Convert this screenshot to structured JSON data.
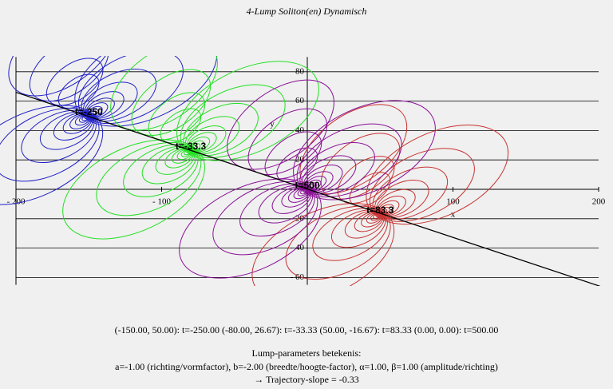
{
  "chart_data": {
    "type": "contour",
    "title": "4-Lump Soliton(en) Dynamisch",
    "x_label": "x",
    "y_label": "y",
    "xlim": [
      -200,
      200
    ],
    "ylim": [
      -65,
      90
    ],
    "xticks": [
      {
        "value": -200,
        "label": "- 200"
      },
      {
        "value": -100,
        "label": "- 100"
      },
      100,
      200
    ],
    "yticks": [
      80,
      60,
      40,
      20,
      {
        "value": -20,
        "label": "- 20"
      },
      {
        "value": -40,
        "label": "- 40"
      },
      {
        "value": -60,
        "label": "- 60"
      }
    ],
    "grid": true,
    "trajectory": {
      "slope": -0.33,
      "color": "#000000"
    },
    "lumps": [
      {
        "x": -150,
        "y": 50,
        "label": "t=-250",
        "color": "#2020c8"
      },
      {
        "x": -80,
        "y": 26.67,
        "label": "t=-33.3",
        "color": "#22e022"
      },
      {
        "x": 50,
        "y": -16.67,
        "label": "t=83.3",
        "color": "#c83232"
      },
      {
        "x": 0,
        "y": 0,
        "label": "t=500",
        "color": "#8a1096"
      }
    ],
    "footer": [
      "(-150.00, 50.00): t=-250.00   (-80.00, 26.67): t=-33.33   (50.00, -16.67): t=83.33   (0.00, 0.00): t=500.00",
      "Lump-parameters betekenis:",
      "a=-1.00 (richting/vormfactor), b=-2.00 (breedte/hoogte-factor), α=1.00, β=1.00 (amplitude/richting)",
      "→ Trajectory-slope = -0.33"
    ]
  }
}
